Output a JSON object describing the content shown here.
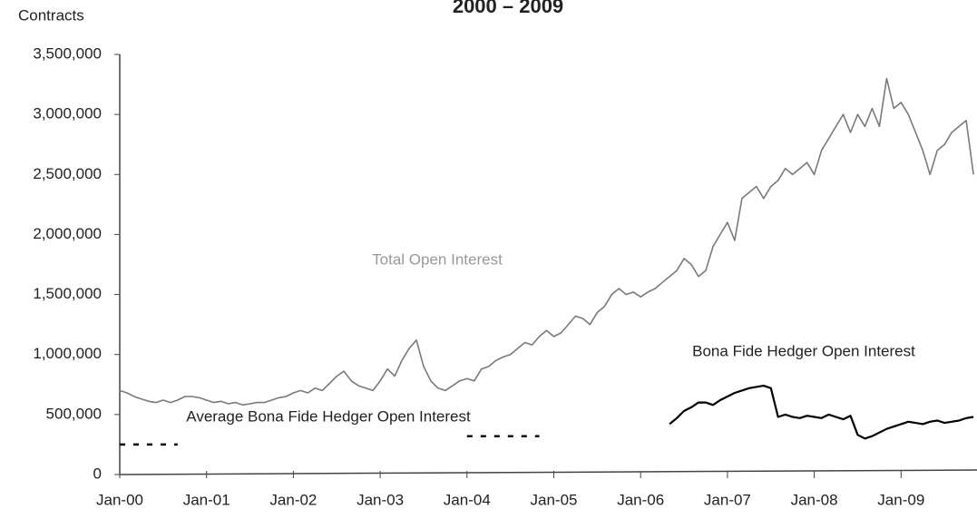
{
  "chart_data": {
    "type": "line",
    "title": "2000 – 2009",
    "y_label": "Contracts",
    "x": [
      "Jan-00",
      "Feb-00",
      "Mar-00",
      "Apr-00",
      "May-00",
      "Jun-00",
      "Jul-00",
      "Aug-00",
      "Sep-00",
      "Oct-00",
      "Nov-00",
      "Dec-00",
      "Jan-01",
      "Feb-01",
      "Mar-01",
      "Apr-01",
      "May-01",
      "Jun-01",
      "Jul-01",
      "Aug-01",
      "Sep-01",
      "Oct-01",
      "Nov-01",
      "Dec-01",
      "Jan-02",
      "Feb-02",
      "Mar-02",
      "Apr-02",
      "May-02",
      "Jun-02",
      "Jul-02",
      "Aug-02",
      "Sep-02",
      "Oct-02",
      "Nov-02",
      "Dec-02",
      "Jan-03",
      "Feb-03",
      "Mar-03",
      "Apr-03",
      "May-03",
      "Jun-03",
      "Jul-03",
      "Aug-03",
      "Sep-03",
      "Oct-03",
      "Nov-03",
      "Dec-03",
      "Jan-04",
      "Feb-04",
      "Mar-04",
      "Apr-04",
      "May-04",
      "Jun-04",
      "Jul-04",
      "Aug-04",
      "Sep-04",
      "Oct-04",
      "Nov-04",
      "Dec-04",
      "Jan-05",
      "Feb-05",
      "Mar-05",
      "Apr-05",
      "May-05",
      "Jun-05",
      "Jul-05",
      "Aug-05",
      "Sep-05",
      "Oct-05",
      "Nov-05",
      "Dec-05",
      "Jan-06",
      "Feb-06",
      "Mar-06",
      "Apr-06",
      "May-06",
      "Jun-06",
      "Jul-06",
      "Aug-06",
      "Sep-06",
      "Oct-06",
      "Nov-06",
      "Dec-06",
      "Jan-07",
      "Feb-07",
      "Mar-07",
      "Apr-07",
      "May-07",
      "Jun-07",
      "Jul-07",
      "Aug-07",
      "Sep-07",
      "Oct-07",
      "Nov-07",
      "Dec-07",
      "Jan-08",
      "Feb-08",
      "Mar-08",
      "Apr-08",
      "May-08",
      "Jun-08",
      "Jul-08",
      "Aug-08",
      "Sep-08",
      "Oct-08",
      "Nov-08",
      "Dec-08",
      "Jan-09",
      "Feb-09",
      "Mar-09",
      "Apr-09",
      "May-09",
      "Jun-09",
      "Jul-09",
      "Aug-09",
      "Sep-09",
      "Oct-09",
      "Nov-09"
    ],
    "xtick_every": 12,
    "series": [
      {
        "name": "Total Open Interest",
        "color": "#7a7a7a",
        "values": [
          700000,
          680000,
          650000,
          630000,
          610000,
          600000,
          620000,
          600000,
          620000,
          650000,
          650000,
          640000,
          620000,
          600000,
          610000,
          590000,
          600000,
          580000,
          590000,
          600000,
          600000,
          620000,
          640000,
          650000,
          680000,
          700000,
          680000,
          720000,
          700000,
          760000,
          820000,
          860000,
          780000,
          740000,
          720000,
          700000,
          780000,
          880000,
          820000,
          950000,
          1050000,
          1120000,
          900000,
          780000,
          720000,
          700000,
          740000,
          780000,
          800000,
          780000,
          880000,
          900000,
          950000,
          980000,
          1000000,
          1050000,
          1100000,
          1080000,
          1150000,
          1200000,
          1150000,
          1180000,
          1250000,
          1320000,
          1300000,
          1250000,
          1350000,
          1400000,
          1500000,
          1550000,
          1500000,
          1520000,
          1480000,
          1520000,
          1550000,
          1600000,
          1650000,
          1700000,
          1800000,
          1750000,
          1650000,
          1700000,
          1900000,
          2000000,
          2100000,
          1950000,
          2300000,
          2350000,
          2400000,
          2300000,
          2400000,
          2450000,
          2550000,
          2500000,
          2550000,
          2600000,
          2500000,
          2700000,
          2800000,
          2900000,
          3000000,
          2850000,
          3000000,
          2900000,
          3050000,
          2900000,
          3300000,
          3050000,
          3100000,
          3000000,
          2850000,
          2700000,
          2500000,
          2700000,
          2750000,
          2850000,
          2900000,
          2950000,
          2500000
        ]
      },
      {
        "name": "Bona Fide Hedger Open Interest",
        "color": "#000000",
        "values": [
          null,
          null,
          null,
          null,
          null,
          null,
          null,
          null,
          null,
          null,
          null,
          null,
          null,
          null,
          null,
          null,
          null,
          null,
          null,
          null,
          null,
          null,
          null,
          null,
          null,
          null,
          null,
          null,
          null,
          null,
          null,
          null,
          null,
          null,
          null,
          null,
          null,
          null,
          null,
          null,
          null,
          null,
          null,
          null,
          null,
          null,
          null,
          null,
          null,
          null,
          null,
          null,
          null,
          null,
          null,
          null,
          null,
          null,
          null,
          null,
          null,
          null,
          null,
          null,
          null,
          null,
          null,
          null,
          null,
          null,
          null,
          null,
          null,
          null,
          null,
          null,
          420000,
          470000,
          530000,
          560000,
          600000,
          600000,
          580000,
          620000,
          650000,
          680000,
          700000,
          720000,
          730000,
          740000,
          720000,
          480000,
          500000,
          480000,
          470000,
          490000,
          480000,
          470000,
          500000,
          480000,
          460000,
          490000,
          330000,
          300000,
          320000,
          350000,
          380000,
          400000,
          420000,
          440000,
          430000,
          420000,
          440000,
          450000,
          430000,
          440000,
          450000,
          470000,
          480000
        ]
      },
      {
        "name": "Average Bona Fide Hedger Open Interest",
        "color": "#000000",
        "dashed": true,
        "values": [
          250000,
          250000,
          250000,
          250000,
          250000,
          250000,
          250000,
          250000,
          250000,
          null,
          null,
          null,
          null,
          null,
          null,
          null,
          null,
          null,
          null,
          null,
          null,
          null,
          null,
          null,
          null,
          null,
          null,
          null,
          null,
          null,
          null,
          null,
          null,
          null,
          null,
          null,
          null,
          null,
          null,
          null,
          null,
          null,
          null,
          null,
          null,
          null,
          null,
          null,
          320000,
          320000,
          320000,
          320000,
          320000,
          320000,
          320000,
          320000,
          320000,
          320000,
          320000,
          null,
          null,
          null,
          null,
          null,
          null,
          null,
          null,
          null,
          null,
          null,
          null,
          null,
          null,
          null,
          null,
          null,
          null,
          null,
          null,
          null,
          null,
          null,
          null,
          null,
          null,
          null,
          null,
          null,
          null,
          null,
          null,
          null,
          null,
          null,
          null,
          null,
          null,
          null,
          null,
          null,
          null,
          null,
          null,
          null,
          null,
          null,
          null,
          null,
          null,
          null,
          null,
          null,
          null,
          null,
          null,
          null,
          null,
          null,
          null
        ]
      }
    ],
    "ylim": [
      0,
      3500000
    ],
    "yticks": [
      0,
      {
        "value": 500000,
        "label": "500,000"
      },
      {
        "value": 1000000,
        "label": "1,000,000"
      },
      {
        "value": 1500000,
        "label": "1,500,000"
      },
      {
        "value": 2000000,
        "label": "2,000,000"
      },
      {
        "value": 2500000,
        "label": "2,500,000"
      },
      {
        "value": 3000000,
        "label": "3,000,000"
      },
      {
        "value": 3500000,
        "label": "3,500,000"
      }
    ],
    "grid": false
  }
}
